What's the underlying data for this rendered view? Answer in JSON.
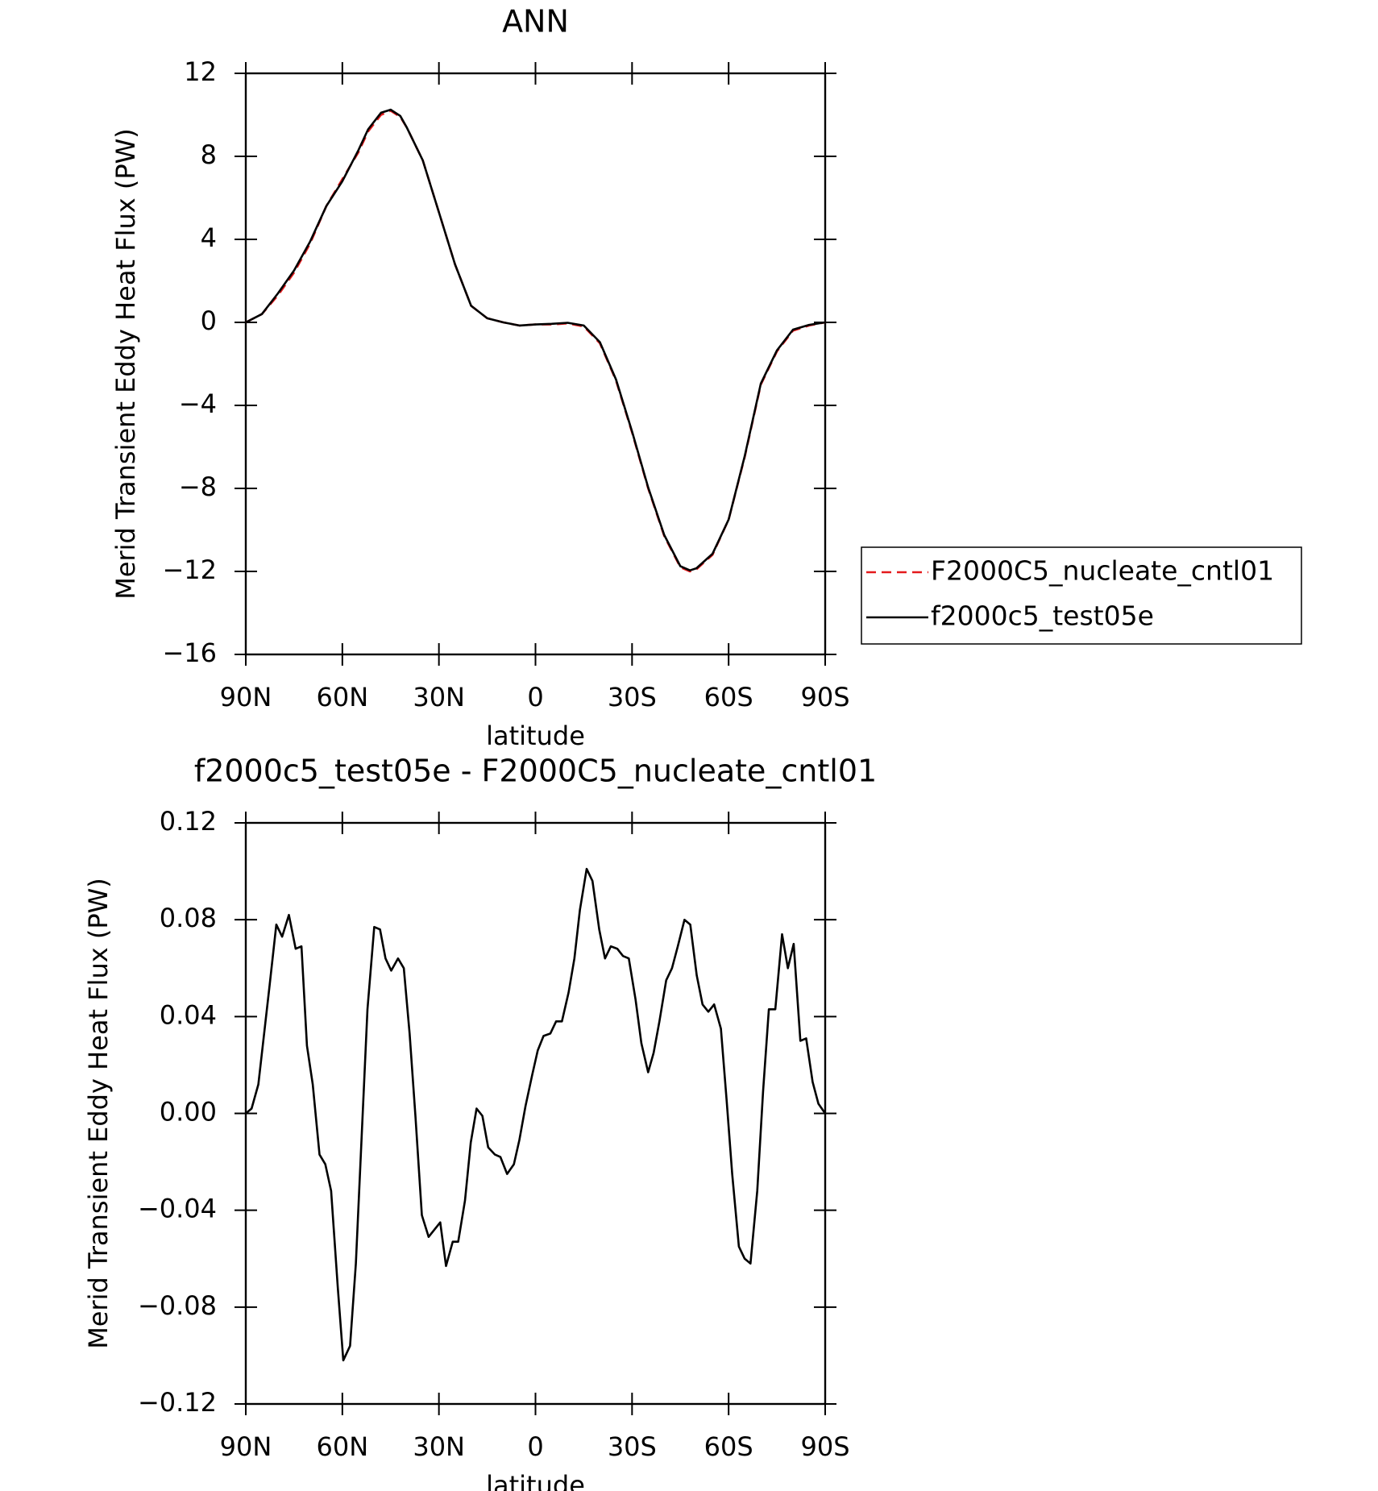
{
  "chart_data": [
    {
      "type": "line",
      "title": "ANN",
      "xlabel": "latitude",
      "ylabel": "Merid Transient Eddy Heat Flux (PW)",
      "x": [
        90,
        85,
        80,
        75,
        70,
        65,
        60,
        55,
        52,
        48,
        45,
        42,
        40,
        35,
        30,
        25,
        20,
        15,
        10,
        5,
        0,
        -5,
        -10,
        -15,
        -20,
        -25,
        -30,
        -35,
        -40,
        -45,
        -48,
        -50,
        -55,
        -60,
        -65,
        -70,
        -75,
        -80,
        -85,
        -90
      ],
      "series": [
        {
          "name": "F2000C5_nucleate_cntl01",
          "color": "#e41a1c",
          "dashed": true,
          "values": [
            0,
            0.4,
            1.3,
            2.4,
            3.8,
            5.6,
            6.9,
            8.2,
            9.2,
            10.0,
            10.2,
            9.9,
            9.4,
            7.8,
            5.3,
            2.8,
            0.8,
            0.2,
            0.0,
            -0.15,
            -0.1,
            -0.1,
            -0.05,
            -0.2,
            -1.0,
            -2.8,
            -5.3,
            -8.0,
            -10.3,
            -11.8,
            -12.0,
            -11.9,
            -11.2,
            -9.5,
            -6.5,
            -3.0,
            -1.4,
            -0.4,
            -0.15,
            0
          ]
        },
        {
          "name": "f2000c5_test05e",
          "color": "#000000",
          "dashed": false,
          "values": [
            0,
            0.4,
            1.4,
            2.5,
            3.9,
            5.6,
            6.8,
            8.3,
            9.3,
            10.1,
            10.25,
            9.95,
            9.4,
            7.8,
            5.3,
            2.8,
            0.8,
            0.2,
            0.0,
            -0.15,
            -0.1,
            -0.07,
            -0.02,
            -0.15,
            -0.95,
            -2.75,
            -5.25,
            -7.95,
            -10.25,
            -11.75,
            -11.95,
            -11.85,
            -11.15,
            -9.5,
            -6.45,
            -2.95,
            -1.35,
            -0.35,
            -0.12,
            0
          ]
        }
      ],
      "xlim": [
        90,
        -90
      ],
      "xticks": [
        {
          "value": 90,
          "label": "90N"
        },
        {
          "value": 60,
          "label": "60N"
        },
        {
          "value": 30,
          "label": "30N"
        },
        0,
        {
          "value": -30,
          "label": "30S"
        },
        {
          "value": -60,
          "label": "60S"
        },
        {
          "value": -90,
          "label": "90S"
        }
      ],
      "ylim": [
        -16,
        12
      ],
      "yticks": [
        {
          "value": -16,
          "label": "−16"
        },
        {
          "value": -12,
          "label": "−12"
        },
        {
          "value": -8,
          "label": "−8"
        },
        {
          "value": -4,
          "label": "−4"
        },
        0,
        4,
        8,
        12
      ],
      "legend": "right"
    },
    {
      "type": "line",
      "title": "f2000c5_test05e - F2000C5_nucleate_cntl01",
      "xlabel": "latitude",
      "ylabel": "Merid Transient Eddy Heat Flux (PW)",
      "x": [
        90,
        88.2,
        86.1,
        82.6,
        80.5,
        78.7,
        76.6,
        74.5,
        72.7,
        71,
        69.2,
        67.1,
        65.3,
        63.5,
        61.4,
        59.7,
        57.6,
        55.8,
        52.2,
        50.1,
        48.3,
        46.6,
        44.8,
        42.7,
        40.9,
        39.1,
        37.3,
        35.3,
        33.2,
        31.4,
        29.6,
        27.8,
        25.7,
        24,
        21.9,
        20.1,
        18.3,
        16.5,
        14.7,
        12.6,
        10.9,
        8.8,
        6.7,
        5,
        3.1,
        1,
        -0.7,
        -2.5,
        -4.6,
        -6.4,
        -8.2,
        -10.3,
        -12.1,
        -13.8,
        -15.9,
        -17.7,
        -19.8,
        -21.6,
        -23.4,
        -25.4,
        -27.2,
        -29,
        -31.1,
        -32.9,
        -35,
        -36.7,
        -38.5,
        -40.6,
        -42.4,
        -44.2,
        -46.3,
        -48.1,
        -50.1,
        -51.9,
        -53.7,
        -55.5,
        -57.6,
        -59.4,
        -61.1,
        -63.2,
        -65,
        -66.8,
        -68.9,
        -70.7,
        -72.5,
        -74.5,
        -76.6,
        -78.4,
        -80.2,
        -82.3,
        -84.1,
        -86.1,
        -87.9,
        -90
      ],
      "series": [
        {
          "name": "f2000c5_test05e - F2000C5_nucleate_cntl01",
          "color": "#000000",
          "dashed": false,
          "values": [
            0,
            0.002,
            0.012,
            0.053,
            0.078,
            0.073,
            0.082,
            0.068,
            0.069,
            0.028,
            0.012,
            -0.017,
            -0.021,
            -0.032,
            -0.072,
            -0.102,
            -0.096,
            -0.062,
            0.043,
            0.077,
            0.076,
            0.064,
            0.059,
            0.064,
            0.06,
            0.033,
            -0.001,
            -0.042,
            -0.051,
            -0.048,
            -0.045,
            -0.063,
            -0.053,
            -0.053,
            -0.036,
            -0.012,
            0.002,
            -0.001,
            -0.014,
            -0.017,
            -0.018,
            -0.025,
            -0.021,
            -0.011,
            0.003,
            0.016,
            0.026,
            0.032,
            0.033,
            0.038,
            0.038,
            0.05,
            0.064,
            0.084,
            0.101,
            0.096,
            0.076,
            0.064,
            0.069,
            0.068,
            0.065,
            0.064,
            0.047,
            0.029,
            0.017,
            0.025,
            0.038,
            0.055,
            0.06,
            0.069,
            0.08,
            0.078,
            0.057,
            0.045,
            0.042,
            0.045,
            0.035,
            0.005,
            -0.025,
            -0.055,
            -0.06,
            -0.062,
            -0.032,
            0.009,
            0.043,
            0.043,
            0.074,
            0.06,
            0.07,
            0.03,
            0.031,
            0.013,
            0.004,
            0
          ]
        }
      ],
      "xlim": [
        90,
        -90
      ],
      "xticks": [
        {
          "value": 90,
          "label": "90N"
        },
        {
          "value": 60,
          "label": "60N"
        },
        {
          "value": 30,
          "label": "30N"
        },
        0,
        {
          "value": -30,
          "label": "30S"
        },
        {
          "value": -60,
          "label": "60S"
        },
        {
          "value": -90,
          "label": "90S"
        }
      ],
      "ylim": [
        -0.12,
        0.12
      ],
      "yticks": [
        {
          "value": -0.12,
          "label": "−0.12"
        },
        {
          "value": -0.08,
          "label": "−0.08"
        },
        {
          "value": -0.04,
          "label": "−0.04"
        },
        {
          "value": 0,
          "label": "0.00"
        },
        0.04,
        0.08,
        0.12
      ]
    }
  ]
}
